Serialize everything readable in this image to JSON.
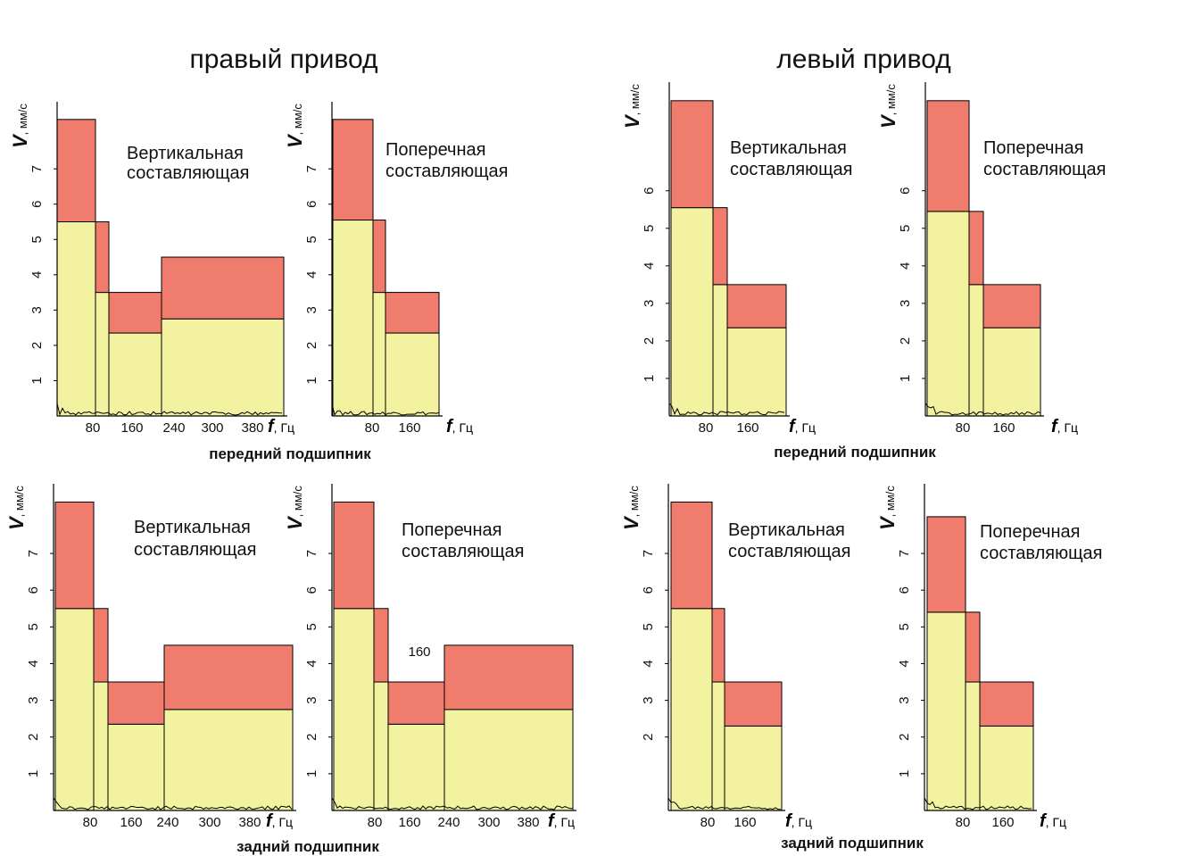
{
  "titles": {
    "right": "правый привод",
    "left": "левый привод"
  },
  "sections": {
    "rf": "передний подшипник",
    "lf": "передний подшипник",
    "rr": "задний подшипник",
    "lr": "задний подшипник"
  },
  "colors": {
    "norm": "#f2f2a0",
    "warn": "#ef7c6c",
    "line": "#000000"
  },
  "axis_labels": {
    "y_symbol": "V",
    "y_unit": ", мм/с",
    "x_symbol": "f",
    "x_unit": ", Гц"
  },
  "chart_data": [
    {
      "type": "bar",
      "group": "правый привод / передний подшипник",
      "annotation": [
        "Вертикальная",
        "составляющая"
      ],
      "xticks": [
        "80",
        "160",
        "240",
        "300",
        "380"
      ],
      "yticks": [
        "1",
        "2",
        "3",
        "4",
        "5",
        "6",
        "7"
      ],
      "ylim": [
        0,
        8.8
      ],
      "bands": [
        {
          "norm": 5.5,
          "limit": 8.4
        },
        {
          "norm": 3.5,
          "limit": 5.5
        },
        {
          "norm": 2.35,
          "limit": 3.5
        },
        {
          "norm": 2.75,
          "limit": 4.5
        }
      ],
      "x_text": ""
    },
    {
      "type": "bar",
      "group": "правый привод / передний подшипник",
      "annotation": [
        "Поперечная",
        "составляющая"
      ],
      "xticks": [
        "80",
        "160"
      ],
      "yticks": [
        "1",
        "2",
        "3",
        "4",
        "5",
        "6",
        "7"
      ],
      "ylim": [
        0,
        8.8
      ],
      "bands": [
        {
          "norm": 5.55,
          "limit": 8.4
        },
        {
          "norm": 3.5,
          "limit": 5.55
        },
        {
          "norm": 2.35,
          "limit": 3.5
        }
      ],
      "x_text": ""
    },
    {
      "type": "bar",
      "group": "левый привод / передний подшипник",
      "annotation": [
        "Вертикальная",
        "составляющая"
      ],
      "xticks": [
        "80",
        "160"
      ],
      "yticks": [
        "1",
        "2",
        "3",
        "4",
        "5",
        "6"
      ],
      "ylim": [
        0,
        8.8
      ],
      "bands": [
        {
          "norm": 5.55,
          "limit": 8.4
        },
        {
          "norm": 3.5,
          "limit": 5.55
        },
        {
          "norm": 2.35,
          "limit": 3.5
        }
      ],
      "x_text": ""
    },
    {
      "type": "bar",
      "group": "левый привод / передний подшипник",
      "annotation": [
        "Поперечная",
        "составляющая"
      ],
      "xticks": [
        "80",
        "160"
      ],
      "yticks": [
        "1",
        "2",
        "3",
        "4",
        "5",
        "6"
      ],
      "ylim": [
        0,
        8.8
      ],
      "bands": [
        {
          "norm": 5.45,
          "limit": 8.4
        },
        {
          "norm": 3.5,
          "limit": 5.45
        },
        {
          "norm": 2.35,
          "limit": 3.5
        }
      ],
      "x_text": ""
    },
    {
      "type": "bar",
      "group": "правый привод / задний подшипник",
      "annotation": [
        "Вертикальная",
        "составляющая"
      ],
      "xticks": [
        "80",
        "160",
        "240",
        "300",
        "380"
      ],
      "yticks": [
        "1",
        "2",
        "3",
        "4",
        "5",
        "6",
        "7"
      ],
      "ylim": [
        0,
        8.8
      ],
      "bands": [
        {
          "norm": 5.5,
          "limit": 8.4
        },
        {
          "norm": 3.5,
          "limit": 5.5
        },
        {
          "norm": 2.35,
          "limit": 3.5
        },
        {
          "norm": 2.75,
          "limit": 4.5
        }
      ],
      "x_text": ""
    },
    {
      "type": "bar",
      "group": "правый привод / задний подшипник",
      "annotation": [
        "Поперечная",
        "составляющая"
      ],
      "xticks": [
        "80",
        "160",
        "240",
        "300",
        "380"
      ],
      "yticks": [
        "1",
        "2",
        "3",
        "4",
        "5",
        "6",
        "7"
      ],
      "ylim": [
        0,
        8.8
      ],
      "bands": [
        {
          "norm": 5.5,
          "limit": 8.4
        },
        {
          "norm": 3.5,
          "limit": 5.5
        },
        {
          "norm": 2.35,
          "limit": 3.5
        },
        {
          "norm": 2.75,
          "limit": 4.5
        }
      ],
      "x_text": "160"
    },
    {
      "type": "bar",
      "group": "левый привод / задний подшипник",
      "annotation": [
        "Вертикальная",
        "составляющая"
      ],
      "xticks": [
        "80",
        "160"
      ],
      "yticks": [
        "2",
        "3",
        "4",
        "5",
        "6",
        "7"
      ],
      "ylim": [
        0,
        8.8
      ],
      "bands": [
        {
          "norm": 5.5,
          "limit": 8.4
        },
        {
          "norm": 3.5,
          "limit": 5.5
        },
        {
          "norm": 2.3,
          "limit": 3.5
        }
      ],
      "x_text": ""
    },
    {
      "type": "bar",
      "group": "левый привод / задний подшипник",
      "annotation": [
        "Поперечная",
        "составляющая"
      ],
      "xticks": [
        "80",
        "160"
      ],
      "yticks": [
        "1",
        "2",
        "3",
        "4",
        "5",
        "6",
        "7"
      ],
      "ylim": [
        0,
        8.8
      ],
      "bands": [
        {
          "norm": 5.4,
          "limit": 8.0
        },
        {
          "norm": 3.5,
          "limit": 5.4
        },
        {
          "norm": 2.3,
          "limit": 3.5
        }
      ],
      "x_text": ""
    }
  ]
}
